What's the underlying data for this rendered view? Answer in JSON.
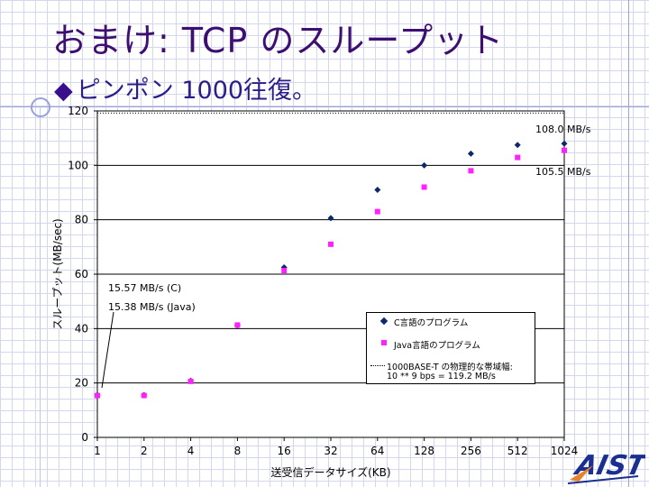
{
  "slide": {
    "title": "おまけ: TCP のスループット",
    "subtitle": "ピンポン 1000往復。",
    "bullet_glyph": "◆",
    "logo_text": "AIST"
  },
  "chart_data": {
    "type": "scatter",
    "title": "",
    "xlabel": "送受信データサイズ(KB)",
    "ylabel": "スループット(MB/sec)",
    "categories": [
      "1",
      "2",
      "4",
      "8",
      "16",
      "32",
      "64",
      "128",
      "256",
      "512",
      "1024"
    ],
    "ylim": [
      0,
      120
    ],
    "yticks": [
      "0",
      "20",
      "40",
      "60",
      "80",
      "100",
      "120"
    ],
    "grid": true,
    "series": [
      {
        "name": "C言語のプログラム",
        "marker": "diamond",
        "color": "#0a2a6b",
        "values": [
          15.57,
          15.6,
          20.8,
          41.2,
          62.5,
          80.6,
          91.0,
          100.0,
          104.3,
          107.5,
          108.0
        ]
      },
      {
        "name": "Java言語のプログラム",
        "marker": "square",
        "color": "#ff22ff",
        "values": [
          15.38,
          15.4,
          20.6,
          41.3,
          61.3,
          71.0,
          83.0,
          92.0,
          98.0,
          102.9,
          105.5
        ]
      }
    ],
    "reference_line": {
      "value": 119.2,
      "style": "dotted",
      "legend_line1": "1000BASE-T の物理的な帯域幅:",
      "legend_line2": "10 ** 9 bps = 119.2 MB/s"
    },
    "annotations": {
      "top_c": "108.0 MB/s",
      "top_java": "105.5 MB/s",
      "low_c": "15.57 MB/s (C)",
      "low_java": "15.38 MB/s (Java)"
    }
  }
}
